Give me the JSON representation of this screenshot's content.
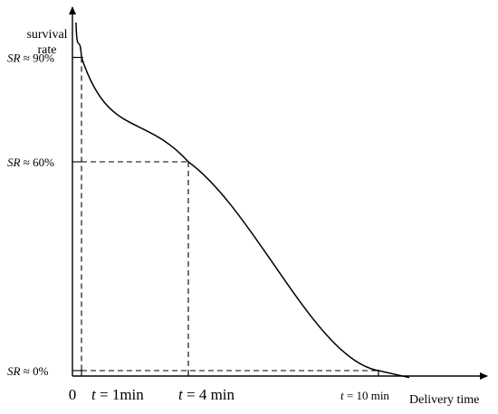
{
  "chart_data": {
    "type": "line",
    "ylabel": [
      "survival",
      "rate"
    ],
    "xlabel": "Delivery time",
    "origin_label": "0",
    "series": [
      {
        "values": [
          {
            "t": 0,
            "sr": 100
          },
          {
            "t": 1,
            "sr": 90
          },
          {
            "t": 4,
            "sr": 60
          },
          {
            "t": 10,
            "sr": 0
          },
          {
            "t": 10.8,
            "sr": -2
          }
        ]
      }
    ],
    "annotations": {
      "y": [
        {
          "var": "SR",
          "rel": " ≈ ",
          "pct": "90%",
          "value": 90
        },
        {
          "var": "SR",
          "rel": " ≈ ",
          "pct": "60%",
          "value": 60
        },
        {
          "var": "SR",
          "rel": " ≈ ",
          "pct": "0%",
          "value": 0
        }
      ],
      "x": [
        {
          "var": "t",
          "eq": " = ",
          "num": "1",
          "unit": "min",
          "value": 1
        },
        {
          "var": "t",
          "eq": " =  ",
          "num": "4",
          "unit": " min",
          "value": 4
        },
        {
          "var": "t",
          "eq": " = ",
          "num": "10",
          "unit": " min",
          "value": 10
        }
      ]
    },
    "grid": false,
    "colors": {
      "line": "#000000",
      "background": "#ffffff"
    }
  }
}
